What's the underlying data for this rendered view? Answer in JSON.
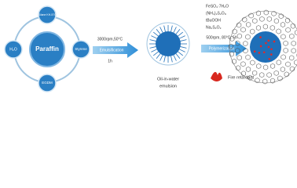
{
  "nodes": {
    "center": "Paraffin",
    "top": "Silane KH-570",
    "right": "Styrene",
    "bottom": "EGDM",
    "left": "H₂O"
  },
  "step1": {
    "condition": "3000rpm,50°C",
    "label": "Emulsification",
    "time": "1h"
  },
  "emulsion": {
    "line1": "Oil-in-water",
    "line2": "emulsion"
  },
  "reagents": [
    "FeSO₄·7H₂O",
    "(NH₄)₂S₂O₈",
    "tBuOOH",
    "Na₂S₂O₃"
  ],
  "step2": {
    "condition": "500rpm, 80°C, 5h",
    "label": "Polymerization"
  },
  "additive": "Fire retardant"
}
